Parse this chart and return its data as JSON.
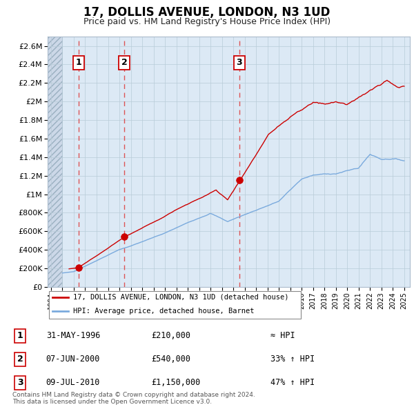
{
  "title": "17, DOLLIS AVENUE, LONDON, N3 1UD",
  "subtitle": "Price paid vs. HM Land Registry's House Price Index (HPI)",
  "sales": [
    {
      "date_num": 1996.42,
      "price": 210000,
      "label": "1"
    },
    {
      "date_num": 2000.44,
      "price": 540000,
      "label": "2"
    },
    {
      "date_num": 2010.52,
      "price": 1150000,
      "label": "3"
    }
  ],
  "sale_dates_vline": [
    1996.42,
    2000.44,
    2010.52
  ],
  "ylim": [
    0,
    2700000
  ],
  "xlim_left": 1993.7,
  "xlim_right": 2025.5,
  "yticks": [
    0,
    200000,
    400000,
    600000,
    800000,
    1000000,
    1200000,
    1400000,
    1600000,
    1800000,
    2000000,
    2200000,
    2400000,
    2600000
  ],
  "ytick_labels": [
    "£0",
    "£200K",
    "£400K",
    "£600K",
    "£800K",
    "£1M",
    "£1.2M",
    "£1.4M",
    "£1.6M",
    "£1.8M",
    "£2M",
    "£2.2M",
    "£2.4M",
    "£2.6M"
  ],
  "xticks": [
    1994,
    1995,
    1996,
    1997,
    1998,
    1999,
    2000,
    2001,
    2002,
    2003,
    2004,
    2005,
    2006,
    2007,
    2008,
    2009,
    2010,
    2011,
    2012,
    2013,
    2014,
    2015,
    2016,
    2017,
    2018,
    2019,
    2020,
    2021,
    2022,
    2023,
    2024,
    2025
  ],
  "price_line_color": "#cc0000",
  "hpi_line_color": "#7aaadd",
  "sale_dot_color": "#cc0000",
  "vline_color": "#dd4444",
  "bg_plot_color": "#dce9f5",
  "legend_label_price": "17, DOLLIS AVENUE, LONDON, N3 1UD (detached house)",
  "legend_label_hpi": "HPI: Average price, detached house, Barnet",
  "table_rows": [
    {
      "label": "1",
      "date": "31-MAY-1996",
      "price": "£210,000",
      "change": "≈ HPI"
    },
    {
      "label": "2",
      "date": "07-JUN-2000",
      "price": "£540,000",
      "change": "33% ↑ HPI"
    },
    {
      "label": "3",
      "date": "09-JUL-2010",
      "price": "£1,150,000",
      "change": "47% ↑ HPI"
    }
  ],
  "footer": "Contains HM Land Registry data © Crown copyright and database right 2024.\nThis data is licensed under the Open Government Licence v3.0."
}
